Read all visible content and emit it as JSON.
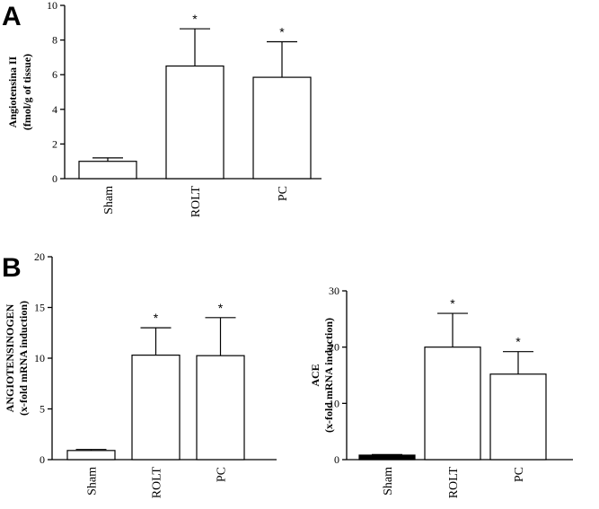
{
  "panels": [
    {
      "letter": "A"
    },
    {
      "letter": "B"
    }
  ],
  "chart_data": [
    {
      "type": "bar",
      "panel": "A",
      "categories": [
        "Sham",
        "ROLT",
        "PC"
      ],
      "values": [
        1.0,
        6.5,
        5.85
      ],
      "errors": [
        0.2,
        2.15,
        2.05
      ],
      "significant": [
        "",
        "*",
        "*"
      ],
      "ylabel_lines": [
        "Angiotensina II",
        "(fmol/g of tissue)"
      ],
      "xlabel": "",
      "ylim": [
        0,
        10
      ],
      "yticks": [
        0,
        2,
        4,
        6,
        8,
        10
      ],
      "bar_colors": [
        "#ffffff",
        "#ffffff",
        "#ffffff"
      ]
    },
    {
      "type": "bar",
      "panel": "B",
      "categories": [
        "Sham",
        "ROLT",
        "PC"
      ],
      "values": [
        0.9,
        10.3,
        10.25
      ],
      "errors": [
        0.1,
        2.7,
        3.75
      ],
      "significant": [
        "",
        "*",
        "*"
      ],
      "ylabel_lines": [
        "ANGIOTENSINOGEN",
        "(x-fold mRNA induction)"
      ],
      "xlabel": "",
      "ylim": [
        0,
        20
      ],
      "yticks": [
        0,
        5,
        10,
        15,
        20
      ],
      "bar_colors": [
        "#ffffff",
        "#ffffff",
        "#ffffff"
      ]
    },
    {
      "type": "bar",
      "panel": "B",
      "categories": [
        "Sham",
        "ROLT",
        "PC"
      ],
      "values": [
        0.8,
        20.0,
        15.2
      ],
      "errors": [
        0.1,
        6.0,
        4.0
      ],
      "significant": [
        "",
        "*",
        "*"
      ],
      "ylabel_lines": [
        "ACE",
        "(x-fold mRNA induction)"
      ],
      "xlabel": "",
      "ylim": [
        0,
        30
      ],
      "yticks": [
        0,
        10,
        20,
        30
      ],
      "bar_colors": [
        "#000000",
        "#ffffff",
        "#ffffff"
      ]
    }
  ]
}
